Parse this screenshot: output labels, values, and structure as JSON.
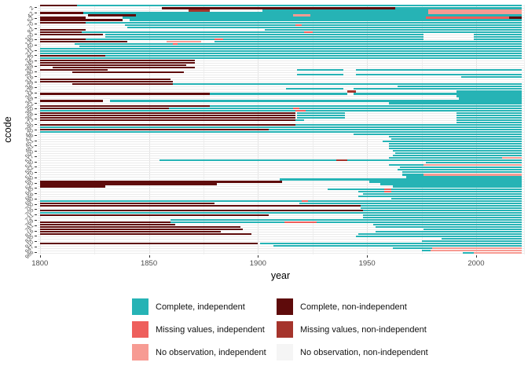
{
  "figure": {
    "x_axis_title": "year",
    "y_axis_title": "ccode"
  },
  "colors": {
    "teal": "#26b3b5",
    "dark_maroon": "#5e0b0b",
    "coral": "#ee5f5c",
    "brick": "#a5342c",
    "salmon": "#f79b93",
    "near_white": "#f5f5f5",
    "grid_major": "#e4e4e4",
    "grid_minor": "#efefef",
    "axis_text": "#4d4d4d"
  },
  "legend": {
    "entries": [
      {
        "label": "Complete, independent",
        "color": "#26b3b5",
        "key": "t",
        "col": 1
      },
      {
        "label": "Complete, non-independent",
        "color": "#5e0b0b",
        "key": "m",
        "col": 2
      },
      {
        "label": "Missing values, independent",
        "color": "#ee5f5c",
        "key": "r",
        "col": 1
      },
      {
        "label": "Missing values, non-independent",
        "color": "#a5342c",
        "key": "b",
        "col": 2
      },
      {
        "label": "No observation, independent",
        "color": "#f79b93",
        "key": "s",
        "col": 1
      },
      {
        "label": "No observation, non-independent",
        "color": "#f5f5f5",
        "key": "w",
        "col": 2
      }
    ]
  },
  "chart_data": {
    "type": "heatmap",
    "title": "",
    "xlabel": "year",
    "ylabel": "ccode",
    "x_domain": [
      1799,
      2022
    ],
    "x_ticks": [
      1800,
      1850,
      1900,
      1950,
      2000
    ],
    "x_minor_breaks": [
      1825,
      1875,
      1925,
      1975,
      2022
    ],
    "y_tick_labels": [
      "2",
      "42",
      "52",
      "70",
      "92",
      "100",
      "135",
      "160",
      "211",
      "225",
      "245",
      "269",
      "290",
      "316",
      "329",
      "338",
      "344",
      "349",
      "352",
      "360",
      "368",
      "373",
      "395",
      "420",
      "436",
      "451",
      "481",
      "500",
      "517",
      "530",
      "552",
      "570",
      "590",
      "620",
      "645",
      "666",
      "690",
      "700",
      "705",
      "731",
      "769",
      "781",
      "816",
      "835",
      "910",
      "947",
      "986"
    ],
    "legend_meaning": {
      "t": "Complete, independent",
      "m": "Complete, non-independent",
      "r": "Missing values, independent",
      "b": "Missing values, non-independent",
      "s": "No observation, independent",
      "w": "No observation, non-independent"
    },
    "rows": [
      [
        [
          1800,
          1817,
          "m"
        ],
        [
          1817,
          2021,
          "t"
        ]
      ],
      [
        [
          1856,
          1963,
          "m"
        ],
        [
          1963,
          2021,
          "t"
        ]
      ],
      [
        [
          1868,
          1878,
          "b"
        ],
        [
          1902,
          1978,
          "t"
        ],
        [
          1978,
          2021,
          "s"
        ]
      ],
      [
        [
          1800,
          1820,
          "m"
        ],
        [
          1820,
          1978,
          "t"
        ],
        [
          1978,
          2021,
          "s"
        ]
      ],
      [
        [
          1822,
          1844,
          "m"
        ],
        [
          1844,
          1916,
          "t"
        ],
        [
          1916,
          1924,
          "s"
        ],
        [
          1924,
          2021,
          "t"
        ]
      ],
      [
        [
          1800,
          1821,
          "m"
        ],
        [
          1838,
          1977,
          "t"
        ],
        [
          1977,
          2015,
          "r"
        ],
        [
          2015,
          2021,
          "m"
        ]
      ],
      [
        [
          1800,
          1838,
          "m"
        ],
        [
          1841,
          2021,
          "t"
        ]
      ],
      [
        [
          1800,
          1821,
          "m"
        ],
        [
          1821,
          2021,
          "t"
        ]
      ],
      [
        [
          1839,
          2021,
          "t"
        ],
        [
          1917,
          1920,
          "r"
        ]
      ],
      [
        [
          1840,
          2021,
          "t"
        ]
      ],
      [
        [
          1800,
          1821,
          "m"
        ],
        [
          1903,
          2021,
          "t"
        ]
      ],
      [
        [
          1800,
          1819,
          "m"
        ],
        [
          1819,
          2021,
          "t"
        ],
        [
          1921,
          1925,
          "r"
        ]
      ],
      [
        [
          1800,
          1829,
          "m"
        ],
        [
          1830,
          1976,
          "t"
        ],
        [
          1999,
          2021,
          "t"
        ]
      ],
      [
        [
          1830,
          1976,
          "t"
        ],
        [
          1999,
          2021,
          "t"
        ]
      ],
      [
        [
          1800,
          1821,
          "m"
        ],
        [
          1821,
          1976,
          "t"
        ],
        [
          1880,
          1884,
          "r"
        ],
        [
          1999,
          2021,
          "t"
        ]
      ],
      [
        [
          1800,
          1840,
          "m"
        ],
        [
          1858,
          1874,
          "s"
        ],
        [
          1880,
          2021,
          "t"
        ]
      ],
      [
        [
          1816,
          2021,
          "t"
        ],
        [
          1861,
          1863,
          "r"
        ]
      ],
      [
        [
          1818,
          2021,
          "t"
        ]
      ],
      [
        [
          1800,
          2021,
          "t"
        ]
      ],
      [
        [
          1800,
          2021,
          "t"
        ]
      ],
      [
        [
          1800,
          2021,
          "t"
        ]
      ],
      [
        [
          1800,
          1830,
          "m"
        ],
        [
          1830,
          2021,
          "t"
        ]
      ],
      [
        [
          1800,
          2021,
          "t"
        ]
      ],
      [
        [
          1800,
          1871,
          "m"
        ]
      ],
      [
        [
          1800,
          1871,
          "m"
        ]
      ],
      [
        [
          1800,
          1867,
          "m"
        ]
      ],
      [
        [
          1806,
          1871,
          "m"
        ]
      ],
      [
        [
          1800,
          1831,
          "m"
        ],
        [
          1918,
          1939,
          "t"
        ],
        [
          1945,
          2021,
          "t"
        ]
      ],
      [
        [
          1815,
          1866,
          "m"
        ]
      ],
      [
        [
          1918,
          1939,
          "t"
        ],
        [
          1945,
          2021,
          "t"
        ]
      ],
      [
        [
          1993,
          2021,
          "t"
        ]
      ],
      [
        [
          1800,
          1860,
          "m"
        ]
      ],
      [
        [
          1800,
          1861,
          "m"
        ]
      ],
      [
        [
          1815,
          1861,
          "m"
        ],
        [
          1861,
          2021,
          "t"
        ]
      ],
      [
        [
          1964,
          2021,
          "t"
        ]
      ],
      [
        [
          1913,
          1939,
          "t"
        ],
        [
          1944,
          2021,
          "t"
        ]
      ],
      [
        [
          1941,
          1945,
          "b"
        ],
        [
          1991,
          2021,
          "t"
        ]
      ],
      [
        [
          1800,
          1878,
          "m"
        ],
        [
          1878,
          1941,
          "t"
        ],
        [
          1944,
          2021,
          "t"
        ]
      ],
      [
        [
          1991,
          2021,
          "t"
        ]
      ],
      [
        [
          1992,
          2021,
          "t"
        ]
      ],
      [
        [
          1800,
          1829,
          "m"
        ],
        [
          1832,
          2021,
          "t"
        ]
      ],
      [
        [
          1960,
          2021,
          "t"
        ]
      ],
      [
        [
          1800,
          1878,
          "m"
        ],
        [
          1878,
          2021,
          "t"
        ]
      ],
      [
        [
          1800,
          1859,
          "m"
        ],
        [
          1859,
          2021,
          "t"
        ],
        [
          1916,
          1919,
          "r"
        ]
      ],
      [
        [
          1800,
          2021,
          "t"
        ],
        [
          1917,
          1922,
          "r"
        ]
      ],
      [
        [
          1800,
          1917,
          "m"
        ],
        [
          1918,
          1940,
          "t"
        ],
        [
          1991,
          2021,
          "t"
        ]
      ],
      [
        [
          1800,
          1917,
          "m"
        ],
        [
          1918,
          1940,
          "t"
        ],
        [
          1991,
          2021,
          "t"
        ]
      ],
      [
        [
          1800,
          1917,
          "m"
        ],
        [
          1918,
          1940,
          "t"
        ],
        [
          1991,
          2021,
          "t"
        ]
      ],
      [
        [
          1800,
          1917,
          "m"
        ],
        [
          1917,
          1921,
          "t"
        ],
        [
          1991,
          2021,
          "t"
        ]
      ],
      [
        [
          1991,
          2021,
          "t"
        ]
      ],
      [
        [
          1800,
          1917,
          "m"
        ],
        [
          1917,
          2021,
          "t"
        ]
      ],
      [
        [
          1800,
          2021,
          "t"
        ]
      ],
      [
        [
          1800,
          1905,
          "m"
        ],
        [
          1905,
          2021,
          "t"
        ]
      ],
      [
        [
          1800,
          2021,
          "t"
        ]
      ],
      [
        [
          1944,
          2021,
          "t"
        ]
      ],
      [
        [
          1960,
          2021,
          "t"
        ]
      ],
      [
        [
          1961,
          2021,
          "t"
        ]
      ],
      [
        [
          1957,
          2021,
          "t"
        ]
      ],
      [
        [
          1960,
          2021,
          "t"
        ]
      ],
      [
        [
          1960,
          2021,
          "t"
        ]
      ],
      [
        [
          1960,
          2021,
          "t"
        ]
      ],
      [
        [
          1962,
          2021,
          "t"
        ]
      ],
      [
        [
          1963,
          2021,
          "t"
        ]
      ],
      [
        [
          1962,
          2021,
          "t"
        ]
      ],
      [
        [
          1960,
          2012,
          "t"
        ],
        [
          2012,
          2021,
          "s"
        ]
      ],
      [
        [
          1855,
          1936,
          "t"
        ],
        [
          1936,
          1941,
          "b"
        ],
        [
          1941,
          2021,
          "t"
        ]
      ],
      [
        [
          1977,
          2021,
          "t"
        ]
      ],
      [
        [
          1960,
          1976,
          "t"
        ],
        [
          1976,
          2021,
          "s"
        ]
      ],
      [
        [
          1965,
          2021,
          "t"
        ]
      ],
      [
        [
          1964,
          2021,
          "t"
        ]
      ],
      [
        [
          1966,
          2021,
          "t"
        ]
      ],
      [
        [
          1966,
          1976,
          "t"
        ],
        [
          1976,
          2021,
          "s"
        ]
      ],
      [
        [
          1968,
          2021,
          "t"
        ]
      ],
      [
        [
          1910,
          2021,
          "t"
        ]
      ],
      [
        [
          1800,
          1911,
          "m"
        ],
        [
          1951,
          2021,
          "t"
        ]
      ],
      [
        [
          1800,
          1881,
          "m"
        ],
        [
          1956,
          2021,
          "t"
        ]
      ],
      [
        [
          1800,
          1830,
          "m"
        ],
        [
          1962,
          2021,
          "t"
        ]
      ],
      [
        [
          1932,
          2021,
          "t"
        ],
        [
          1958,
          1961,
          "r"
        ]
      ],
      [
        [
          1946,
          2021,
          "t"
        ],
        [
          1958,
          1961,
          "r"
        ]
      ],
      [
        [
          1948,
          2021,
          "t"
        ]
      ],
      [
        [
          1946,
          2021,
          "t"
        ]
      ],
      [
        [
          1961,
          2021,
          "t"
        ]
      ],
      [
        [
          1800,
          2021,
          "t"
        ],
        [
          1920,
          1923,
          "r"
        ]
      ],
      [
        [
          1800,
          1880,
          "m"
        ],
        [
          1919,
          2021,
          "t"
        ]
      ],
      [
        [
          1800,
          1947,
          "m"
        ],
        [
          1947,
          2021,
          "t"
        ]
      ],
      [
        [
          1947,
          2021,
          "t"
        ]
      ],
      [
        [
          1800,
          1948,
          "m"
        ],
        [
          1948,
          2021,
          "t"
        ]
      ],
      [
        [
          1800,
          2021,
          "t"
        ]
      ],
      [
        [
          1800,
          1905,
          "m"
        ],
        [
          1948,
          2021,
          "t"
        ]
      ],
      [
        [
          1948,
          2021,
          "t"
        ]
      ],
      [
        [
          1860,
          2021,
          "t"
        ]
      ],
      [
        [
          1800,
          1860,
          "m"
        ],
        [
          1860,
          2021,
          "t"
        ],
        [
          1912,
          1927,
          "r"
        ]
      ],
      [
        [
          1800,
          1862,
          "m"
        ],
        [
          1953,
          2021,
          "t"
        ]
      ],
      [
        [
          1800,
          1892,
          "m"
        ],
        [
          1954,
          2021,
          "t"
        ]
      ],
      [
        [
          1800,
          1893,
          "m"
        ],
        [
          1976,
          2021,
          "t"
        ]
      ],
      [
        [
          1800,
          1883,
          "m"
        ],
        [
          1954,
          2021,
          "t"
        ]
      ],
      [
        [
          1800,
          1897,
          "m"
        ],
        [
          1946,
          2021,
          "t"
        ]
      ],
      [
        [
          1945,
          2021,
          "t"
        ]
      ],
      [
        [
          1984,
          2021,
          "t"
        ]
      ],
      [
        [
          1975,
          2021,
          "t"
        ]
      ],
      [
        [
          1800,
          1900,
          "m"
        ],
        [
          1901,
          2021,
          "t"
        ]
      ],
      [
        [
          1907,
          2021,
          "t"
        ]
      ],
      [
        [
          1962,
          1980,
          "t"
        ],
        [
          1980,
          2021,
          "s"
        ]
      ],
      [
        [
          1975,
          1979,
          "t"
        ],
        [
          1979,
          2021,
          "s"
        ]
      ],
      [
        [
          1994,
          1999,
          "t"
        ],
        [
          1999,
          2021,
          "s"
        ]
      ]
    ]
  }
}
